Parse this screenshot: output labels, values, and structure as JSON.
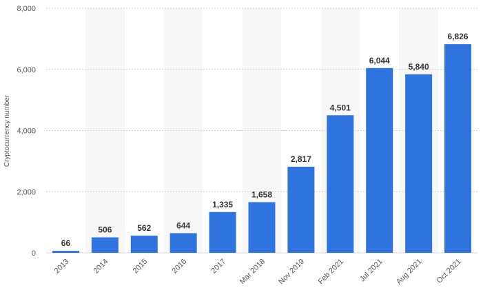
{
  "chart_data": {
    "type": "bar",
    "categories": [
      "2013",
      "2014",
      "2015",
      "2016",
      "2017",
      "Mar 2018",
      "Nov 2019",
      "Feb 2021",
      "Jul 2021",
      "Aug 2021",
      "Oct 2021"
    ],
    "values": [
      66,
      506,
      562,
      644,
      1335,
      1658,
      2817,
      4501,
      6044,
      5840,
      6826
    ],
    "value_labels": [
      "66",
      "506",
      "562",
      "644",
      "1,335",
      "1,658",
      "2,817",
      "4,501",
      "6,044",
      "5,840",
      "6,826"
    ],
    "title": "",
    "xlabel": "",
    "ylabel": "Cryptocurrency number",
    "ylim": [
      0,
      8000
    ],
    "yticks": [
      0,
      2000,
      4000,
      6000,
      8000
    ],
    "ytick_labels": [
      "0",
      "2,000",
      "4,000",
      "6,000",
      "8,000"
    ],
    "grid": true,
    "alternating_bands": true,
    "colors": {
      "bar": "#2f74de",
      "band": "#f7f7f7",
      "grid": "#d4d4d4"
    }
  }
}
